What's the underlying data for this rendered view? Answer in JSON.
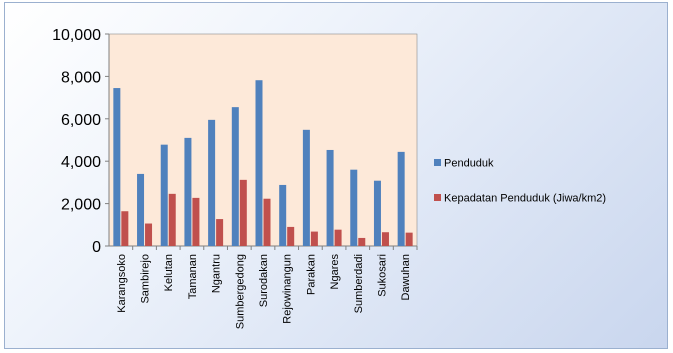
{
  "chart_data": {
    "type": "bar",
    "categories": [
      "Karangsoko",
      "Sambirejo",
      "Kelutan",
      "Tamanan",
      "Ngantru",
      "Sumbergedong",
      "Surodakan",
      "Rejowinangun",
      "Parakan",
      "Ngares",
      "Sumberdadi",
      "Sukosari",
      "Dawuhan"
    ],
    "series": [
      {
        "name": "Penduduk",
        "color": "#4f81bd",
        "values": [
          7450,
          3400,
          4780,
          5100,
          5950,
          6550,
          7820,
          2880,
          5480,
          4530,
          3600,
          3080,
          4440
        ]
      },
      {
        "name": "Kepadatan Penduduk (Jiwa/km2)",
        "color": "#c0504d",
        "values": [
          1640,
          1060,
          2460,
          2270,
          1270,
          3120,
          2230,
          900,
          680,
          770,
          380,
          650,
          630
        ]
      }
    ],
    "ylim": [
      0,
      10000
    ],
    "yticks": [
      "0",
      "2,000",
      "4,000",
      "6,000",
      "8,000",
      "10,000"
    ],
    "ytick_values": [
      0,
      2000,
      4000,
      6000,
      8000,
      10000
    ],
    "grid": false,
    "legend_position": "right",
    "plot_background": "#fde9d9",
    "title": "",
    "xlabel": "",
    "ylabel": ""
  }
}
